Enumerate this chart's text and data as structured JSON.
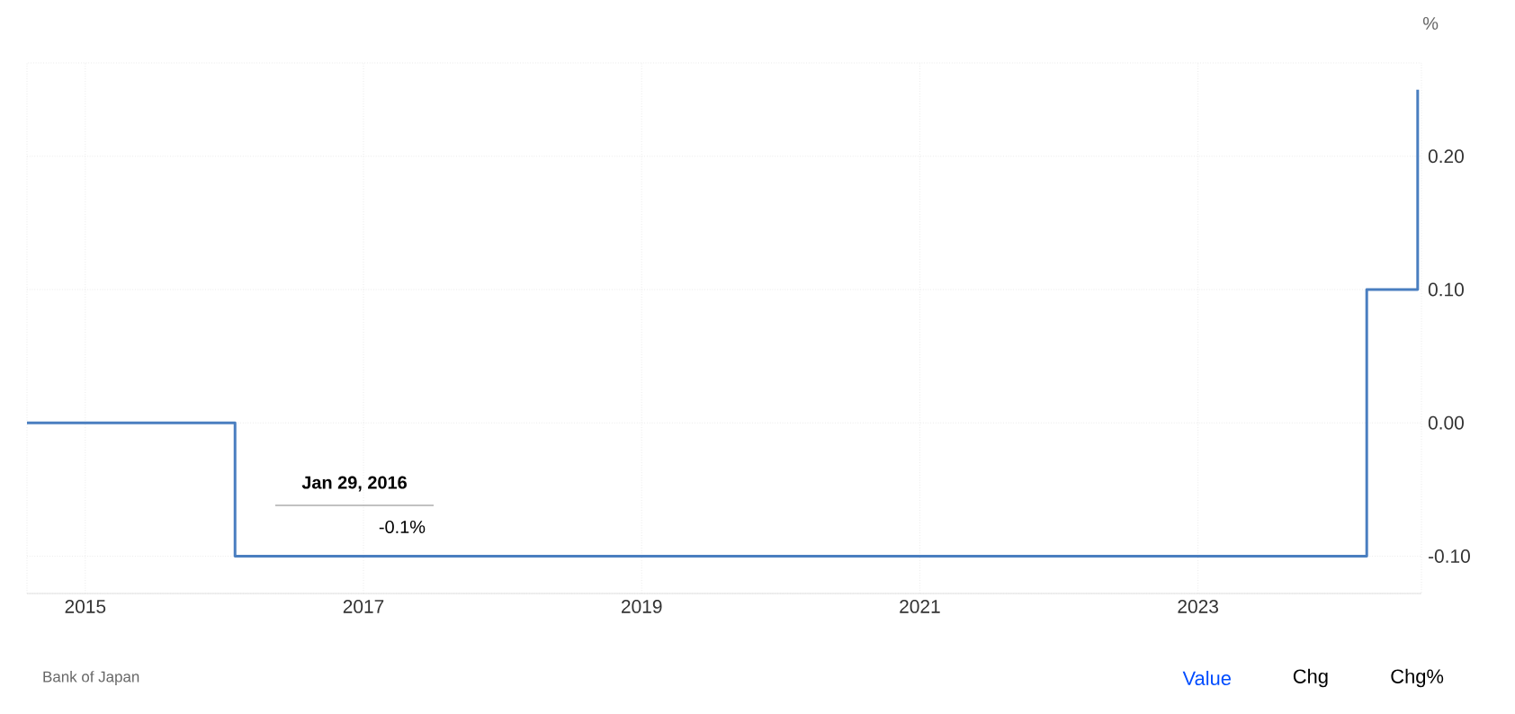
{
  "chart_data": {
    "type": "step",
    "ylabel": "%",
    "x": [
      "2014-08-01",
      "2016-01-29",
      "2024-03-19",
      "2024-07-31"
    ],
    "series": [
      {
        "color": "#4a7ec0",
        "values": [
          0,
          -0.1,
          0.1,
          0.25
        ]
      }
    ],
    "xlim": [
      "2014-08-01",
      "2024-08-10"
    ],
    "xticks": [
      {
        "value": "2015",
        "label": "2015"
      },
      {
        "value": "2017",
        "label": "2017"
      },
      {
        "value": "2019",
        "label": "2019"
      },
      {
        "value": "2021",
        "label": "2021"
      },
      {
        "value": "2023",
        "label": "2023"
      }
    ],
    "ylim": [
      -0.128,
      0.27
    ],
    "yticks": [
      {
        "value": -0.1,
        "label": "-0.10"
      },
      {
        "value": 0,
        "label": "0.00"
      },
      {
        "value": 0.1,
        "label": "0.10"
      },
      {
        "value": 0.2,
        "label": "0.20"
      }
    ],
    "grid": true,
    "marker": "none",
    "line_style": "solid",
    "annotations": [
      "Jan 29, 2016",
      "-0.1%",
      "Bank of Japan",
      "Value",
      "Chg",
      "Chg%"
    ]
  }
}
